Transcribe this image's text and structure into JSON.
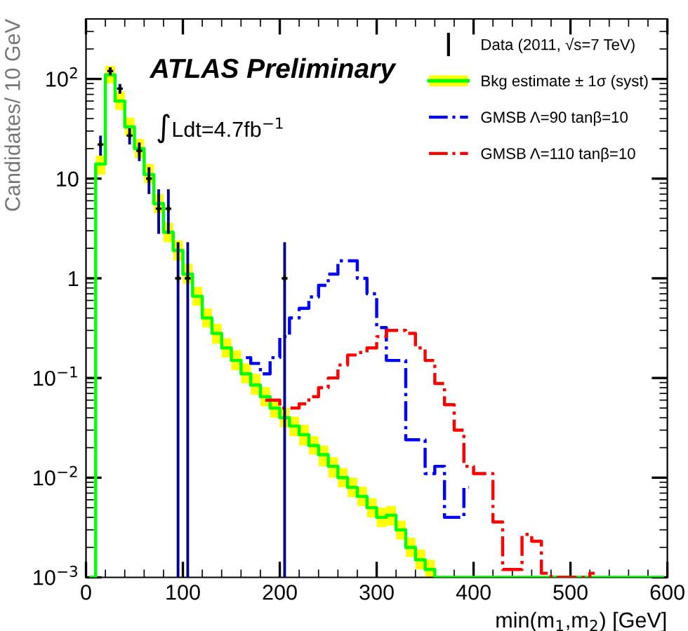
{
  "chart_data": {
    "type": "step",
    "xlabel": "min(m$_{1}$,m$_{2}$) [GeV]",
    "ylabel": "Candidates/ 10 GeV",
    "annotations": [
      "ATLAS Preliminary",
      "∫Ldt=4.7fb$^{−1}$"
    ],
    "log": "y",
    "xlim": [
      0,
      600
    ],
    "ylim": [
      0.001,
      400
    ],
    "xticks": [
      0,
      100,
      200,
      300,
      400,
      500,
      600
    ],
    "yticks": [
      {
        "value": 0.001,
        "label": "10$^{−3}$"
      },
      {
        "value": 0.01,
        "label": "10$^{−2}$"
      },
      {
        "value": 0.1,
        "label": "10$^{−1}$"
      },
      1,
      10,
      {
        "value": 100,
        "label": "10$^{2}$"
      }
    ],
    "legend": "top right",
    "grid": false,
    "series": [
      {
        "name": "Data (2011, √s=7 TeV)",
        "type": "scatter",
        "marker": "cross",
        "color": "#000000",
        "x": [
          15,
          25,
          35,
          45,
          55,
          65,
          75,
          85,
          95,
          105,
          205
        ],
        "values": [
          22,
          120,
          80,
          27,
          19,
          10,
          5,
          5,
          1,
          1,
          1
        ],
        "errors": [
          [
            17,
            27
          ],
          [
            109,
            131
          ],
          [
            71,
            89
          ],
          [
            22,
            32
          ],
          [
            15,
            23
          ],
          [
            7,
            13
          ],
          [
            2.8,
            7.8
          ],
          [
            2.8,
            7.8
          ],
          [
            0.001,
            2.3
          ],
          [
            0.001,
            2.3
          ],
          [
            0.001,
            2.3
          ]
        ]
      },
      {
        "name": "Bkg estimate ± 1σ (syst)",
        "color": "#00ff00",
        "line_style": "solid",
        "x": [
          5,
          15,
          25,
          35,
          45,
          55,
          65,
          75,
          85,
          95,
          105,
          115,
          125,
          135,
          145,
          155,
          165,
          175,
          185,
          195,
          205,
          215,
          225,
          235,
          245,
          255,
          265,
          275,
          285,
          295,
          305,
          315,
          325,
          335,
          345,
          355,
          365,
          595
        ],
        "values": [
          0.001,
          14,
          110,
          60,
          33,
          20,
          11,
          5.6,
          2.9,
          1.9,
          1.1,
          0.66,
          0.4,
          0.28,
          0.2,
          0.15,
          0.11,
          0.085,
          0.065,
          0.05,
          0.04,
          0.033,
          0.027,
          0.021,
          0.017,
          0.013,
          0.01,
          0.008,
          0.0065,
          0.005,
          0.004,
          0.0042,
          0.003,
          0.002,
          0.0015,
          0.0012,
          0.001,
          0.001
        ],
        "lower": [
          0.001,
          11,
          90,
          49,
          27,
          16,
          9,
          4.5,
          2.3,
          1.5,
          0.88,
          0.53,
          0.32,
          0.22,
          0.16,
          0.12,
          0.088,
          0.068,
          0.052,
          0.04,
          0.032,
          0.026,
          0.021,
          0.017,
          0.013,
          0.01,
          0.008,
          0.0064,
          0.0052,
          0.004,
          0.0032,
          0.0033,
          0.0024,
          0.0016,
          0.0012,
          0.001,
          0.001,
          0.001
        ],
        "upper": [
          0.001,
          17,
          135,
          75,
          41,
          25,
          14,
          7,
          3.6,
          2.4,
          1.4,
          0.82,
          0.5,
          0.35,
          0.25,
          0.19,
          0.14,
          0.11,
          0.081,
          0.062,
          0.05,
          0.041,
          0.034,
          0.026,
          0.021,
          0.016,
          0.0125,
          0.01,
          0.0081,
          0.0062,
          0.005,
          0.0052,
          0.0037,
          0.0025,
          0.0019,
          0.0015,
          0.001,
          0.001
        ]
      },
      {
        "name": "GMSB Λ=90 tanβ=10",
        "color": "#0000ff",
        "line_style": "dashed",
        "x": [
          165,
          175,
          185,
          195,
          205,
          215,
          225,
          235,
          245,
          255,
          265,
          275,
          285,
          295,
          305,
          315,
          325,
          335,
          345,
          355,
          365,
          375,
          385,
          395
        ],
        "values": [
          0.16,
          0.14,
          0.11,
          0.16,
          0.26,
          0.4,
          0.5,
          0.65,
          0.85,
          1.1,
          1.5,
          1.5,
          1.0,
          0.7,
          0.32,
          0.15,
          0.15,
          0.024,
          0.024,
          0.011,
          0.013,
          0.004,
          0.004,
          0.008
        ]
      },
      {
        "name": "GMSB Λ=110 tanβ=10",
        "color": "#ff0000",
        "line_style": "dashed",
        "x": [
          185,
          195,
          205,
          215,
          225,
          235,
          245,
          255,
          265,
          275,
          285,
          295,
          305,
          315,
          325,
          335,
          345,
          355,
          365,
          375,
          385,
          395,
          405,
          415,
          425,
          435,
          445,
          455,
          465,
          475,
          485,
          495,
          505,
          515,
          525
        ],
        "values": [
          0.06,
          0.06,
          0.05,
          0.05,
          0.055,
          0.065,
          0.08,
          0.1,
          0.135,
          0.17,
          0.18,
          0.2,
          0.26,
          0.3,
          0.3,
          0.28,
          0.2,
          0.15,
          0.088,
          0.054,
          0.03,
          0.013,
          0.011,
          0.011,
          0.0036,
          0.0012,
          0.0012,
          0.0027,
          0.0023,
          0.0011,
          0.001,
          0.001,
          0.001,
          0.001,
          0.0011
        ]
      }
    ]
  }
}
